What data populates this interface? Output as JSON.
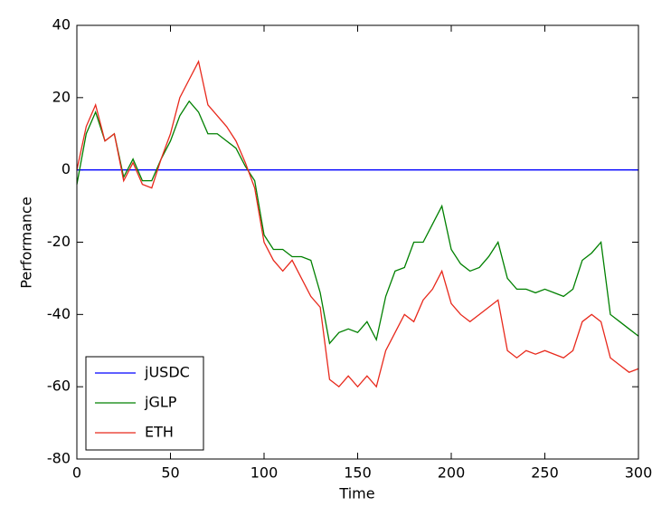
{
  "chart_data": {
    "type": "line",
    "x_label": "Time",
    "y_label": "Performance",
    "x": [
      0,
      5,
      10,
      15,
      20,
      25,
      30,
      35,
      40,
      45,
      50,
      55,
      60,
      65,
      70,
      75,
      80,
      85,
      90,
      95,
      100,
      105,
      110,
      115,
      120,
      125,
      130,
      135,
      140,
      145,
      150,
      155,
      160,
      165,
      170,
      175,
      180,
      185,
      190,
      195,
      200,
      205,
      210,
      215,
      220,
      225,
      230,
      235,
      240,
      245,
      250,
      255,
      260,
      265,
      270,
      275,
      280,
      285,
      290,
      295,
      300
    ],
    "series": [
      {
        "name": "jUSDC",
        "color": "#0000ff",
        "values": [
          0,
          0,
          0,
          0,
          0,
          0,
          0,
          0,
          0,
          0,
          0,
          0,
          0,
          0,
          0,
          0,
          0,
          0,
          0,
          0,
          0,
          0,
          0,
          0,
          0,
          0,
          0,
          0,
          0,
          0,
          0,
          0,
          0,
          0,
          0,
          0,
          0,
          0,
          0,
          0,
          0,
          0,
          0,
          0,
          0,
          0,
          0,
          0,
          0,
          0,
          0,
          0,
          0,
          0,
          0,
          0,
          0,
          0,
          0,
          0,
          0
        ]
      },
      {
        "name": "jGLP",
        "color": "#008000",
        "values": [
          -4,
          10,
          16,
          8,
          10,
          -2,
          3,
          -3,
          -3,
          3,
          8,
          15,
          19,
          16,
          10,
          10,
          8,
          6,
          1,
          -3,
          -18,
          -22,
          -22,
          -24,
          -24,
          -25,
          -34,
          -48,
          -45,
          -44,
          -45,
          -42,
          -47,
          -35,
          -28,
          -27,
          -20,
          -20,
          -15,
          -10,
          -22,
          -26,
          -28,
          -27,
          -24,
          -20,
          -30,
          -33,
          -33,
          -34,
          -33,
          -34,
          -35,
          -33,
          -25,
          -23,
          -20,
          -40,
          -42,
          -44,
          -46
        ]
      },
      {
        "name": "ETH",
        "color": "#e8291c",
        "values": [
          0,
          12,
          18,
          8,
          10,
          -3,
          2,
          -4,
          -5,
          3,
          10,
          20,
          25,
          30,
          18,
          15,
          12,
          8,
          2,
          -5,
          -20,
          -25,
          -28,
          -25,
          -30,
          -35,
          -38,
          -58,
          -60,
          -57,
          -60,
          -57,
          -60,
          -50,
          -45,
          -40,
          -42,
          -36,
          -33,
          -28,
          -37,
          -40,
          -42,
          -40,
          -38,
          -36,
          -50,
          -52,
          -50,
          -51,
          -50,
          -51,
          -52,
          -50,
          -42,
          -40,
          -42,
          -52,
          -54,
          -56,
          -55
        ]
      }
    ],
    "xlim": [
      0,
      300
    ],
    "xticks": [
      0,
      50,
      100,
      150,
      200,
      250,
      300
    ],
    "ylim": [
      -80,
      40
    ],
    "yticks": [
      -80,
      -60,
      -40,
      -20,
      0,
      20,
      40
    ],
    "legend": "lower left"
  }
}
